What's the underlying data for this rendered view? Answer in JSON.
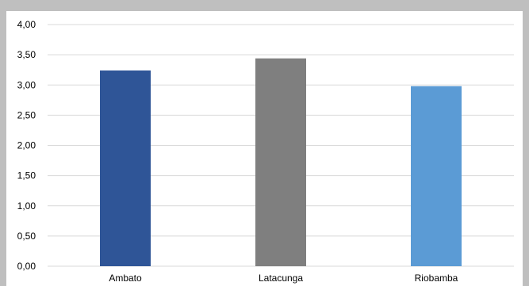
{
  "chart_data": {
    "type": "bar",
    "categories": [
      "Ambato",
      "Latacunga",
      "Riobamba"
    ],
    "values": [
      3.24,
      3.44,
      2.98
    ],
    "bar_colors": [
      "#2f5597",
      "#7f7f7f",
      "#5b9bd5"
    ],
    "ylim": [
      0,
      4
    ],
    "yticks": [
      "0,00",
      "0,50",
      "1,00",
      "1,50",
      "2,00",
      "2,50",
      "3,00",
      "3,50",
      "4,00"
    ],
    "ytick_values": [
      0,
      0.5,
      1,
      1.5,
      2,
      2.5,
      3,
      3.5,
      4
    ],
    "grid": true,
    "gridline_color": "#d9d9d9",
    "frame_color": "#bfbfbf",
    "title": "",
    "xlabel": "",
    "ylabel": ""
  }
}
